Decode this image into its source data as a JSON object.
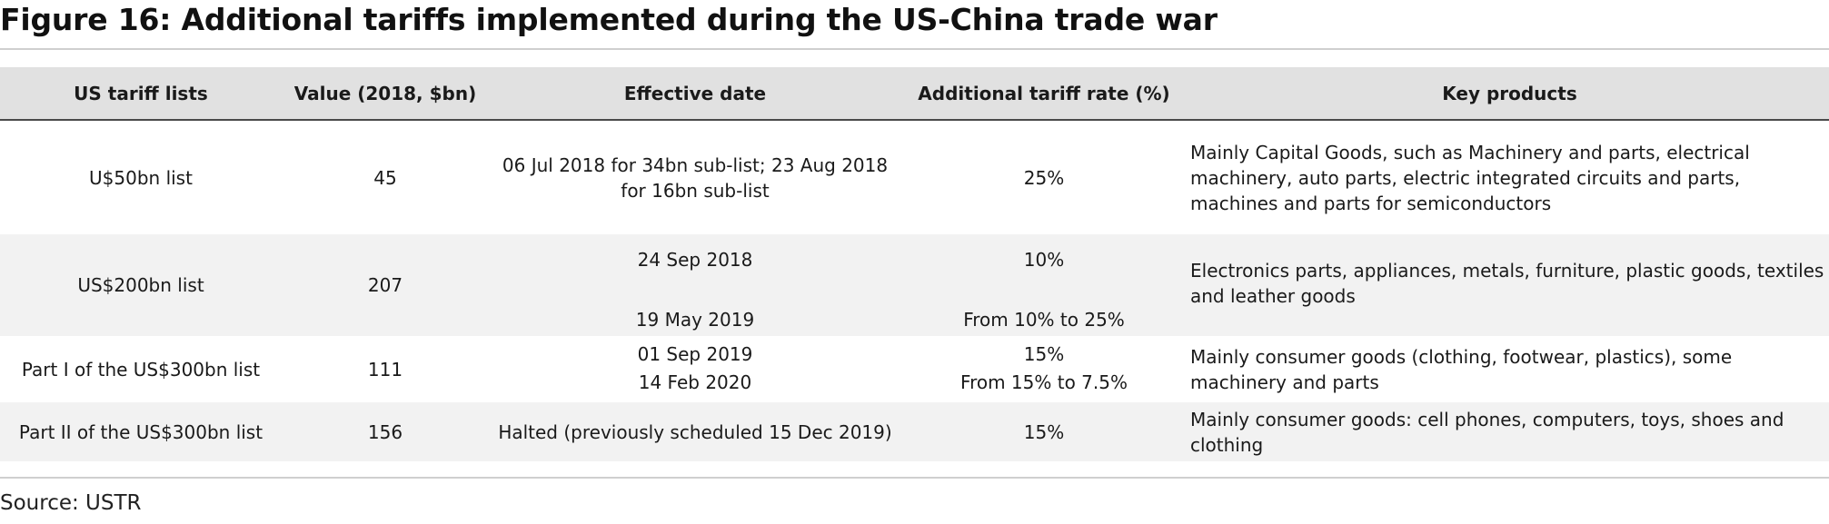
{
  "title": "Figure 16: Additional tariffs implemented during the US-China trade war",
  "table": {
    "headers": [
      "US tariff lists",
      "Value (2018, $bn)",
      "Effective date",
      "Additional tariff rate (%)",
      "Key products"
    ],
    "rows": [
      {
        "list": "U$50bn list",
        "value": "45",
        "dates": [
          "06 Jul 2018 for 34bn sub-list; 23 Aug 2018 for 16bn sub-list"
        ],
        "rates": [
          "25%"
        ],
        "products": "Mainly Capital Goods, such as Machinery and parts, electrical machinery, auto parts, electric integrated circuits and parts, machines and parts for semiconductors"
      },
      {
        "list": "US$200bn list",
        "value": "207",
        "dates": [
          "24 Sep 2018",
          "19 May 2019"
        ],
        "rates": [
          "10%",
          "From 10% to 25%"
        ],
        "products": "Electronics parts, appliances, metals, furniture, plastic goods, textiles and leather goods"
      },
      {
        "list": "Part I of the US$300bn list",
        "value": "111",
        "dates": [
          "01 Sep 2019",
          "14 Feb 2020"
        ],
        "rates": [
          "15%",
          "From 15% to 7.5%"
        ],
        "products": "Mainly consumer goods (clothing, footwear, plastics), some machinery and parts"
      },
      {
        "list": "Part II of the US$300bn list",
        "value": "156",
        "dates": [
          "Halted (previously scheduled 15 Dec 2019)"
        ],
        "rates": [
          "15%"
        ],
        "products": "Mainly consumer goods: cell phones, computers, toys, shoes and clothing"
      }
    ]
  },
  "source": "Source: USTR"
}
